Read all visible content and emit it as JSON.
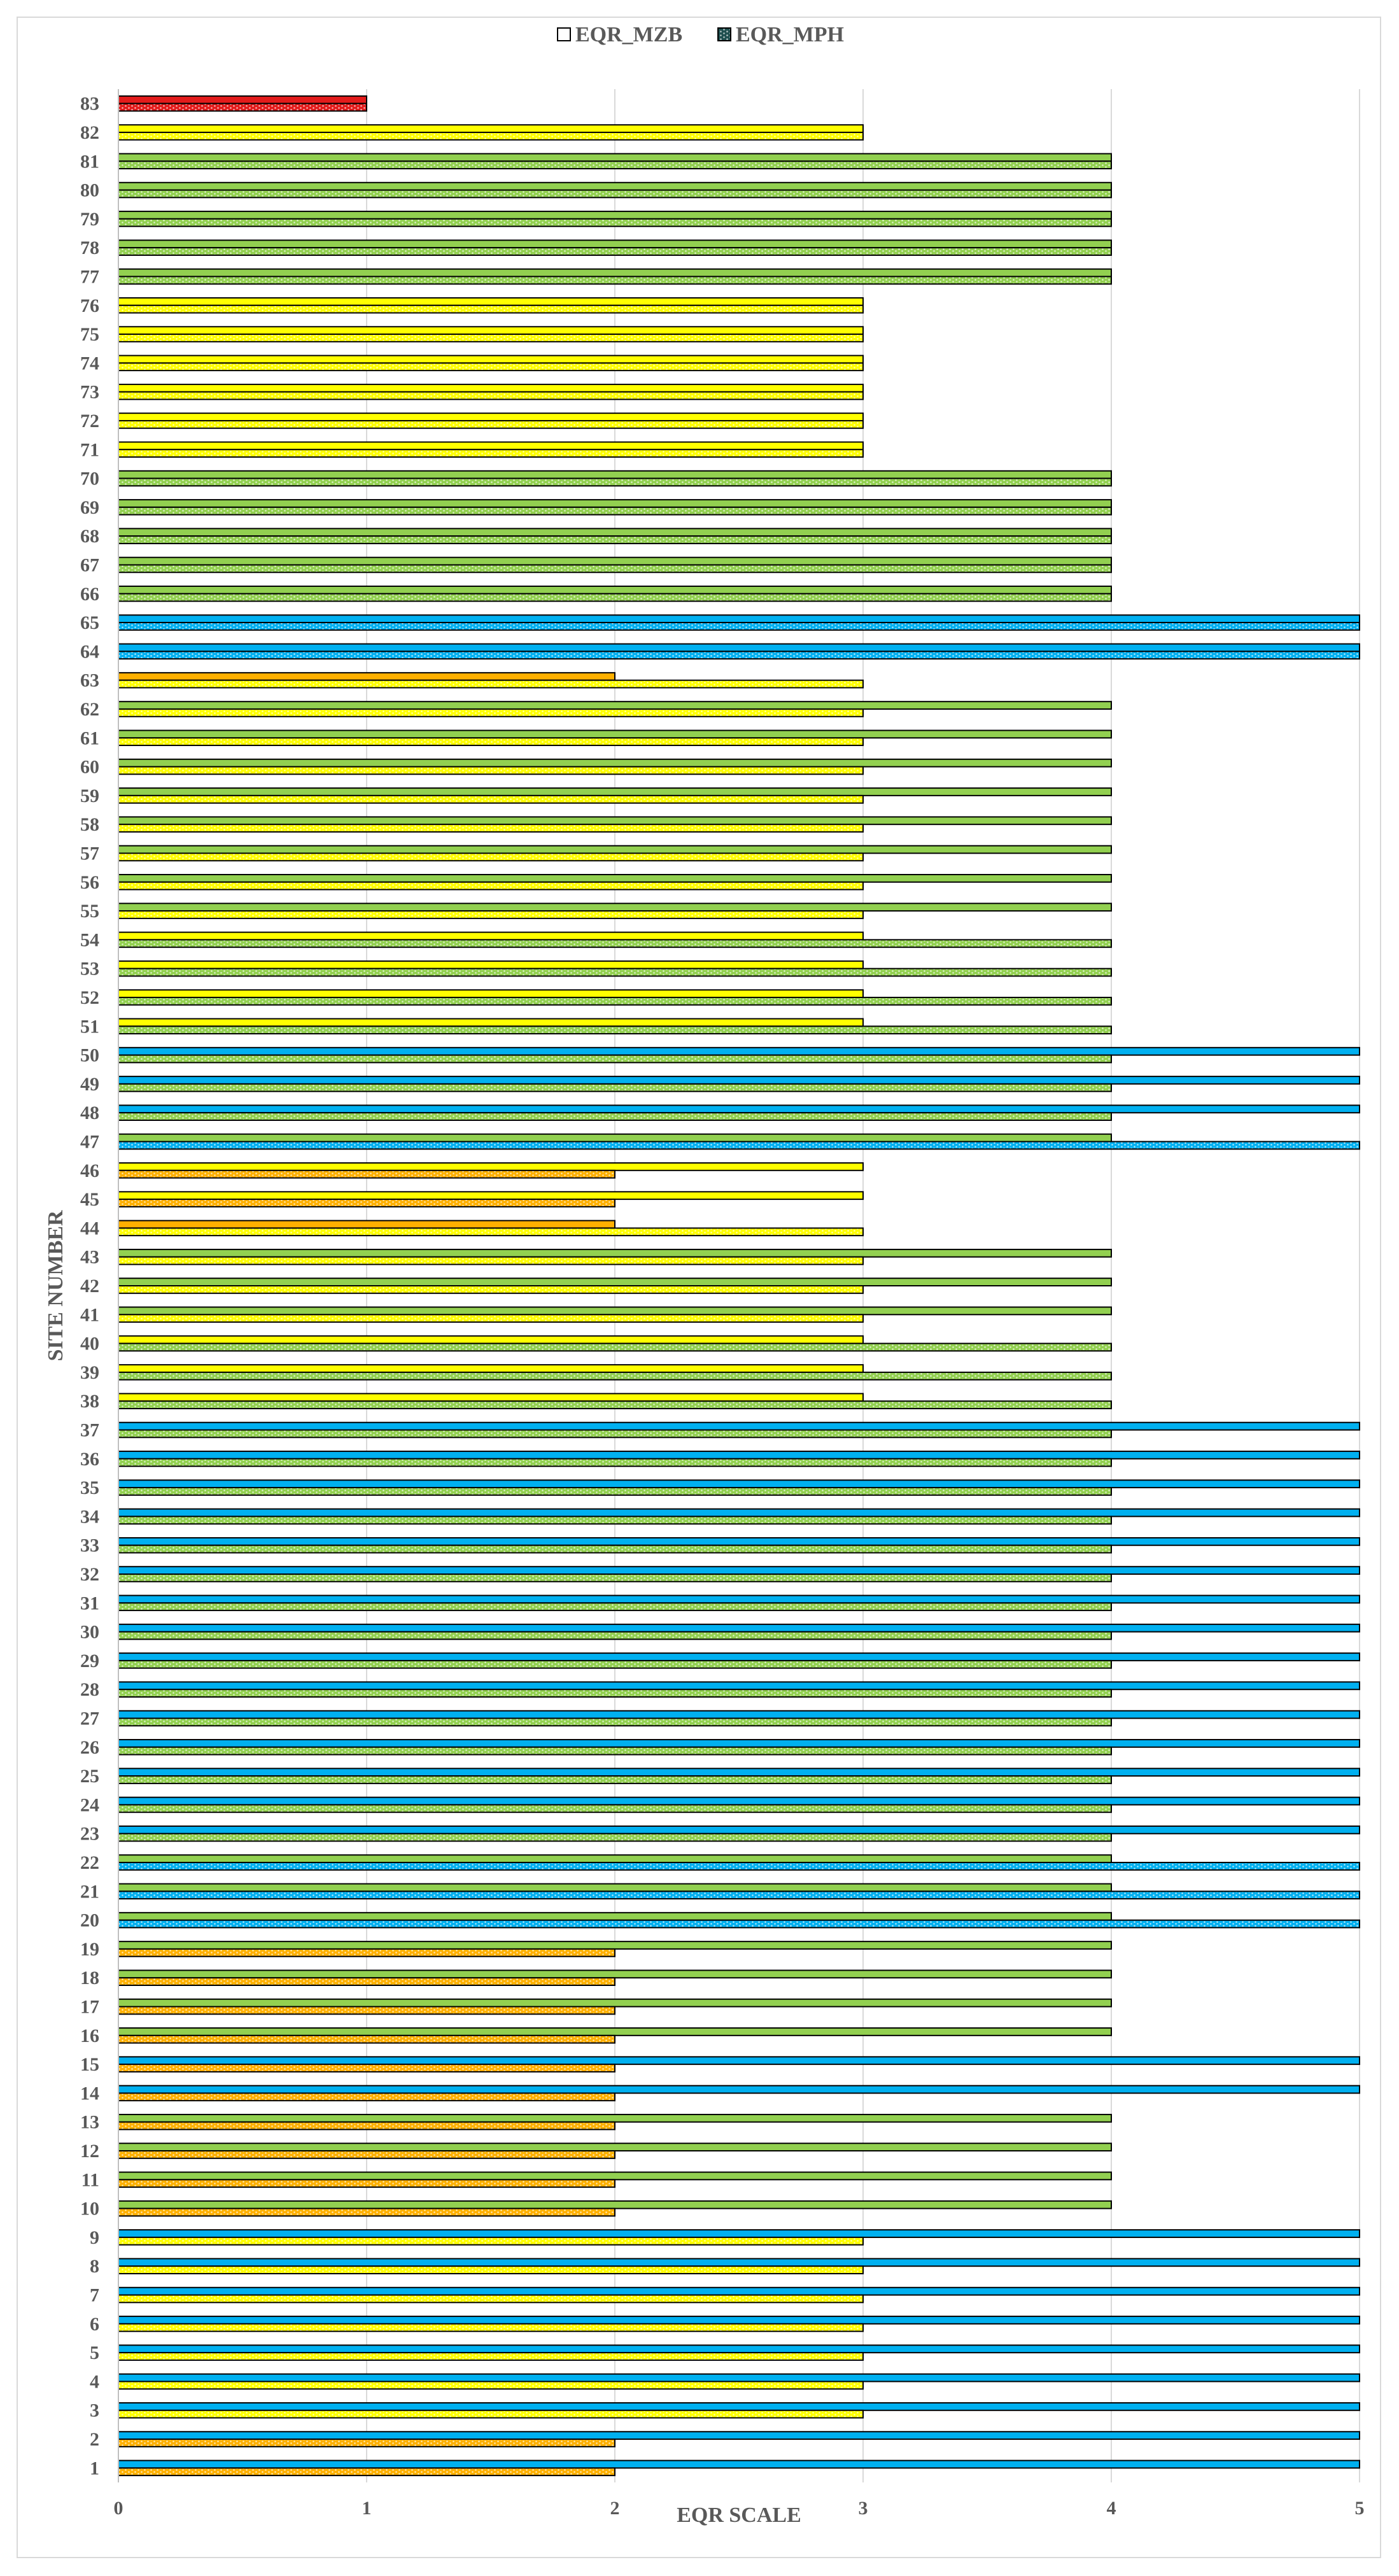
{
  "chart_data": {
    "type": "bar",
    "orientation": "horizontal",
    "title": "",
    "xlabel": "EQR SCALE",
    "ylabel": "SITE NUMBER",
    "xlim": [
      0,
      5
    ],
    "xticks": [
      "0",
      "1",
      "2",
      "3",
      "4",
      "5"
    ],
    "grid": true,
    "legend_position": "top",
    "categories": [
      "1",
      "2",
      "3",
      "4",
      "5",
      "6",
      "7",
      "8",
      "9",
      "10",
      "11",
      "12",
      "13",
      "14",
      "15",
      "16",
      "17",
      "18",
      "19",
      "20",
      "21",
      "22",
      "23",
      "24",
      "25",
      "26",
      "27",
      "28",
      "29",
      "30",
      "31",
      "32",
      "33",
      "34",
      "35",
      "36",
      "37",
      "38",
      "39",
      "40",
      "41",
      "42",
      "43",
      "44",
      "45",
      "46",
      "47",
      "48",
      "49",
      "50",
      "51",
      "52",
      "53",
      "54",
      "55",
      "56",
      "57",
      "58",
      "59",
      "60",
      "61",
      "62",
      "63",
      "64",
      "65",
      "66",
      "67",
      "68",
      "69",
      "70",
      "71",
      "72",
      "73",
      "74",
      "75",
      "76",
      "77",
      "78",
      "79",
      "80",
      "81",
      "82",
      "83"
    ],
    "series": [
      {
        "name": "EQR_MZB",
        "pattern": "solid",
        "values": [
          5,
          5,
          5,
          5,
          5,
          5,
          5,
          5,
          5,
          4,
          4,
          4,
          4,
          5,
          5,
          4,
          4,
          4,
          4,
          4,
          4,
          4,
          5,
          5,
          5,
          5,
          5,
          5,
          5,
          5,
          5,
          5,
          5,
          5,
          5,
          5,
          5,
          3,
          3,
          3,
          4,
          4,
          4,
          2,
          3,
          3,
          4,
          5,
          5,
          5,
          3,
          3,
          3,
          3,
          4,
          4,
          4,
          4,
          4,
          4,
          4,
          4,
          2,
          5,
          5,
          4,
          4,
          4,
          4,
          4,
          3,
          3,
          3,
          3,
          3,
          3,
          4,
          4,
          4,
          4,
          4,
          3,
          1
        ]
      },
      {
        "name": "EQR_MPH",
        "pattern": "dotted",
        "values": [
          2,
          2,
          3,
          3,
          3,
          3,
          3,
          3,
          3,
          2,
          2,
          2,
          2,
          2,
          2,
          2,
          2,
          2,
          2,
          5,
          5,
          5,
          4,
          4,
          4,
          4,
          4,
          4,
          4,
          4,
          4,
          4,
          4,
          4,
          4,
          4,
          4,
          4,
          4,
          4,
          3,
          3,
          3,
          3,
          2,
          2,
          5,
          4,
          4,
          4,
          4,
          4,
          4,
          4,
          3,
          3,
          3,
          3,
          3,
          3,
          3,
          3,
          3,
          5,
          5,
          4,
          4,
          4,
          4,
          4,
          3,
          3,
          3,
          3,
          3,
          3,
          4,
          4,
          4,
          4,
          4,
          3,
          1
        ]
      }
    ],
    "class_colors": {
      "1": "#e31b1b",
      "2": "#ffb000",
      "3": "#ffff00",
      "4": "#92d050",
      "5": "#00b0f0"
    }
  }
}
